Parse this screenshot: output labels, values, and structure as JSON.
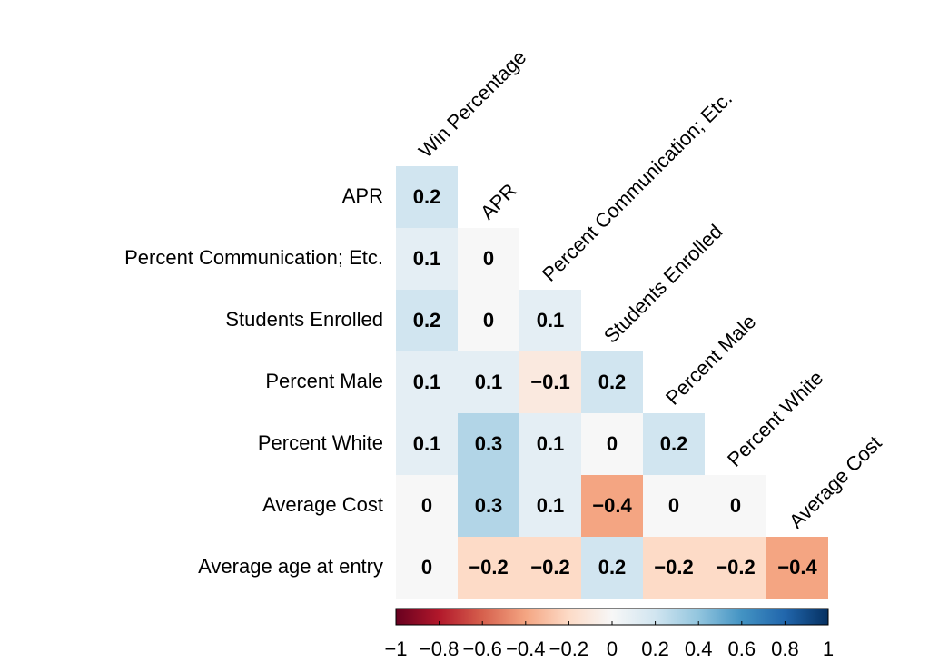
{
  "chart_data": {
    "type": "heatmap",
    "rows": [
      "APR",
      "Percent Communication; Etc.",
      "Students Enrolled",
      "Percent Male",
      "Percent White",
      "Average Cost",
      "Average age at entry"
    ],
    "columns": [
      "Win Percentage",
      "APR",
      "Percent Communication; Etc.",
      "Students Enrolled",
      "Percent Male",
      "Percent White",
      "Average Cost"
    ],
    "values": [
      [
        0.2,
        null,
        null,
        null,
        null,
        null,
        null
      ],
      [
        0.1,
        0,
        null,
        null,
        null,
        null,
        null
      ],
      [
        0.2,
        0,
        0.1,
        null,
        null,
        null,
        null
      ],
      [
        0.1,
        0.1,
        -0.1,
        0.2,
        null,
        null,
        null
      ],
      [
        0.1,
        0.3,
        0.1,
        0,
        0.2,
        null,
        null
      ],
      [
        0,
        0.3,
        0.1,
        -0.4,
        0,
        0,
        null
      ],
      [
        0,
        -0.2,
        -0.2,
        0.2,
        -0.2,
        -0.2,
        -0.4
      ]
    ],
    "value_labels": [
      [
        "0.2",
        null,
        null,
        null,
        null,
        null,
        null
      ],
      [
        "0.1",
        "0",
        null,
        null,
        null,
        null,
        null
      ],
      [
        "0.2",
        "0",
        "0.1",
        null,
        null,
        null,
        null
      ],
      [
        "0.1",
        "0.1",
        "−0.1",
        "0.2",
        null,
        null,
        null
      ],
      [
        "0.1",
        "0.3",
        "0.1",
        "0",
        "0.2",
        null,
        null
      ],
      [
        "0",
        "0.3",
        "0.1",
        "−0.4",
        "0",
        "0",
        null
      ],
      [
        "0",
        "−0.2",
        "−0.2",
        "0.2",
        "−0.2",
        "−0.2",
        "−0.4"
      ]
    ],
    "zlim": [
      -1,
      1
    ],
    "colors": [
      "#67001f",
      "#b2182b",
      "#d6604d",
      "#f4a582",
      "#fddbc7",
      "#f7f7f7",
      "#d1e5f0",
      "#92c5de",
      "#4393c3",
      "#2166ac",
      "#053061"
    ],
    "colorbar_ticks": [
      {
        "value": -1,
        "label": "−1"
      },
      {
        "value": -0.8,
        "label": "−0.8"
      },
      {
        "value": -0.6,
        "label": "−0.6"
      },
      {
        "value": -0.4,
        "label": "−0.4"
      },
      {
        "value": -0.2,
        "label": "−0.2"
      },
      0,
      0.2,
      0.4,
      0.6,
      0.8,
      1
    ]
  }
}
